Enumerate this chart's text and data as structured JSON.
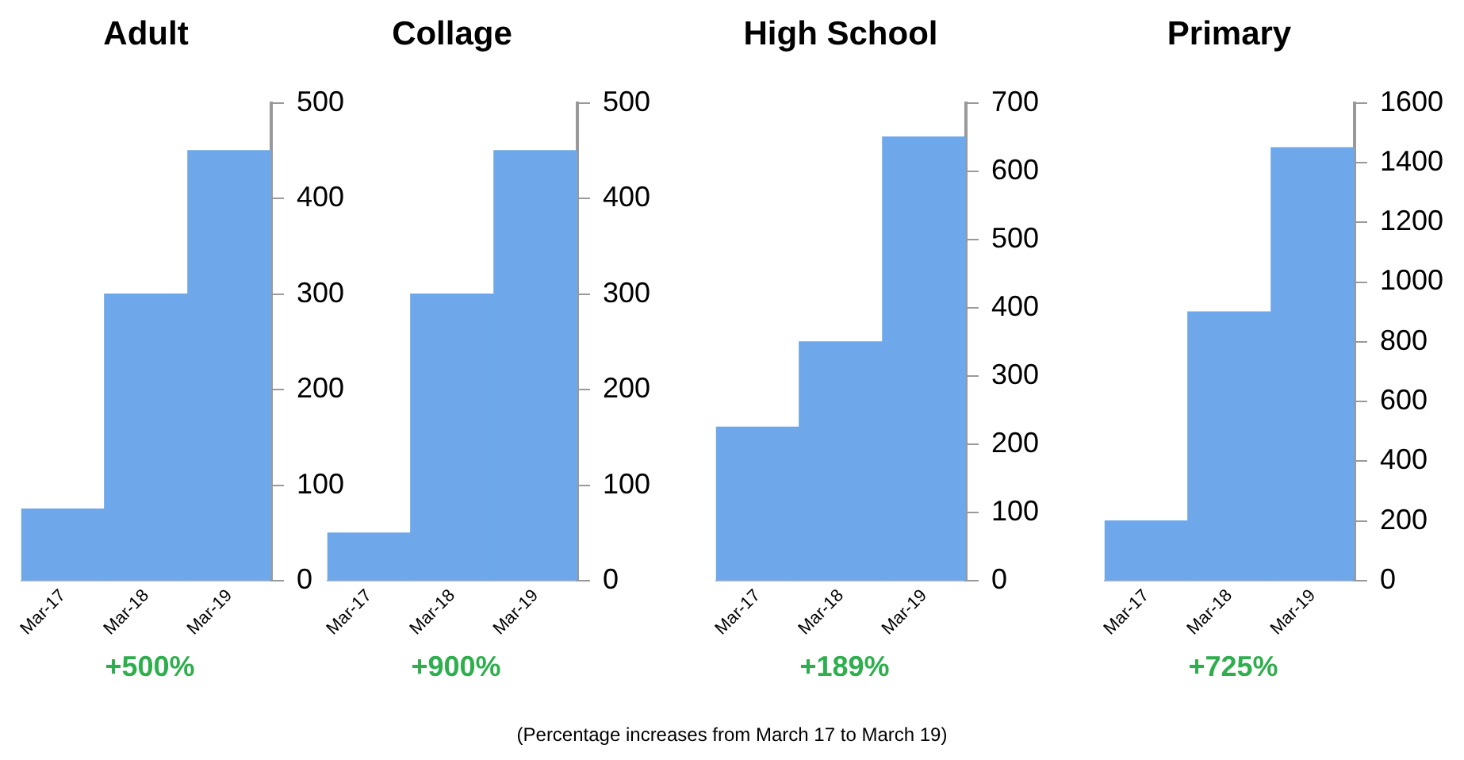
{
  "chart_data": [
    {
      "type": "bar",
      "title": "Adult",
      "categories": [
        "Mar-17",
        "Mar-18",
        "Mar-19"
      ],
      "values": [
        75,
        300,
        450
      ],
      "color": "#6ea8ea",
      "ylim": [
        0,
        500
      ],
      "yticks": [
        0,
        100,
        200,
        300,
        400,
        500
      ],
      "grid": false,
      "annotations": [
        "+500%"
      ]
    },
    {
      "type": "bar",
      "title": "Collage",
      "categories": [
        "Mar-17",
        "Mar-18",
        "Mar-19"
      ],
      "values": [
        50,
        300,
        450
      ],
      "color": "#6ea8ea",
      "ylim": [
        0,
        500
      ],
      "yticks": [
        0,
        100,
        200,
        300,
        400,
        500
      ],
      "grid": false,
      "annotations": [
        "+900%"
      ]
    },
    {
      "type": "bar",
      "title": "High School",
      "categories": [
        "Mar-17",
        "Mar-18",
        "Mar-19"
      ],
      "values": [
        225,
        350,
        650
      ],
      "color": "#6ea8ea",
      "ylim": [
        0,
        700
      ],
      "yticks": [
        0,
        100,
        200,
        300,
        400,
        500,
        600,
        700
      ],
      "grid": false,
      "annotations": [
        "+189%"
      ]
    },
    {
      "type": "bar",
      "title": "Primary",
      "categories": [
        "Mar-17",
        "Mar-18",
        "Mar-19"
      ],
      "values": [
        200,
        900,
        1450
      ],
      "color": "#6ea8ea",
      "ylim": [
        0,
        1600
      ],
      "yticks": [
        0,
        200,
        400,
        600,
        800,
        1000,
        1200,
        1400,
        1600
      ],
      "grid": false,
      "annotations": [
        "+725%",
        "(Percentage increases from March 17 to March 19)"
      ]
    }
  ]
}
